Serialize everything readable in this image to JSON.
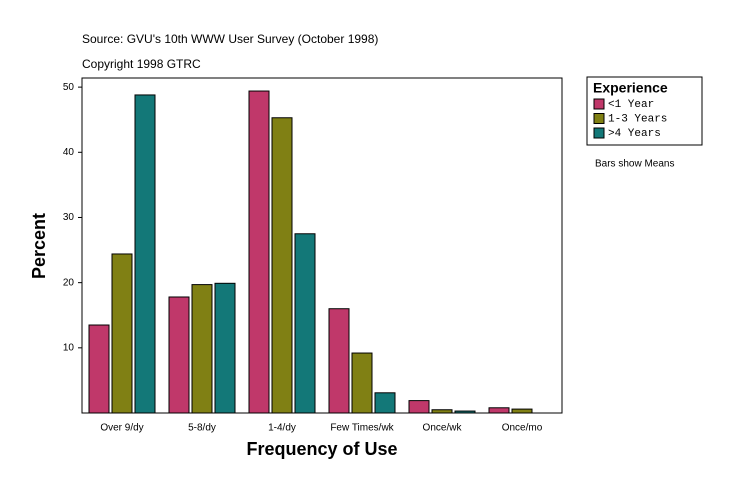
{
  "chart_data": {
    "type": "bar",
    "subtitle": "Source: GVU's 10th WWW User Survey (October 1998)",
    "copyright": "Copyright 1998 GTRC",
    "x_label": "Frequency of Use",
    "y_label": "Percent",
    "categories": [
      "Over 9/dy",
      "5-8/dy",
      "1-4/dy",
      "Few Times/wk",
      "Once/wk",
      "Once/mo"
    ],
    "series": [
      {
        "name": "<1 Year",
        "color": "#c0386a",
        "values": [
          13.5,
          17.8,
          49.4,
          16.0,
          1.9,
          0.8
        ]
      },
      {
        "name": "1-3 Years",
        "color": "#808014",
        "values": [
          24.4,
          19.7,
          45.3,
          9.2,
          0.5,
          0.6
        ]
      },
      {
        "name": ">4 Years",
        "color": "#137878",
        "values": [
          48.8,
          19.9,
          27.5,
          3.1,
          0.3,
          null
        ]
      }
    ],
    "legend_title": "Experience",
    "note": "Bars show Means",
    "ylim": [
      0,
      51.4
    ],
    "yticks": [
      10,
      20,
      30,
      40,
      50
    ],
    "grid": false,
    "legend": "right"
  }
}
